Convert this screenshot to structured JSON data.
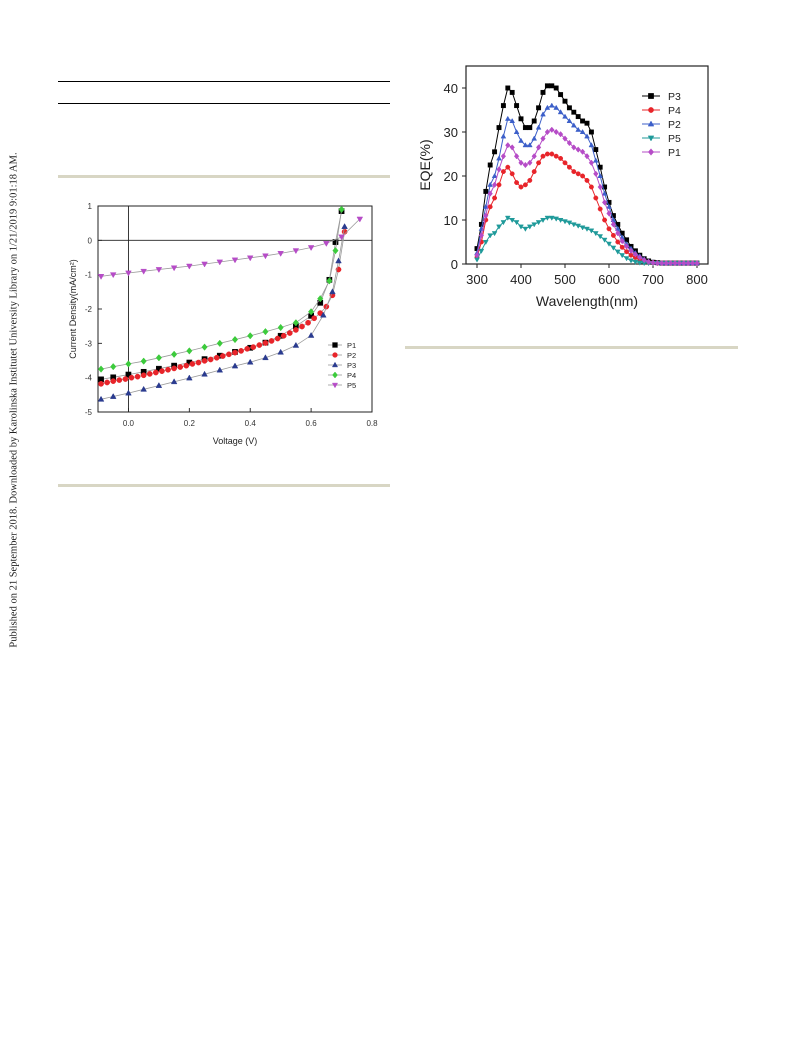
{
  "sidebar": {
    "published_note": "Published on 21 September 2018. Downloaded by Karolinska Institutet University Library on 1/21/2019 9:01:18 AM."
  },
  "chart_data": [
    {
      "type": "scatter",
      "xlabel": "Voltage (V)",
      "ylabel": "Current Density(mA/cm²)",
      "xlim": [
        -0.1,
        0.8
      ],
      "ylim": [
        -5,
        1
      ],
      "x_ticks": [
        "0.0",
        "0.2",
        "0.4",
        "0.6",
        "0.8"
      ],
      "y_ticks": [
        "1",
        "0",
        "-1",
        "-2",
        "-3",
        "-4",
        "-5"
      ],
      "legend_position": "bottom-right",
      "reference_lines": {
        "x": 0,
        "y": 0
      },
      "series": [
        {
          "name": "P1",
          "color": "#000000",
          "marker": "square",
          "Jsc": -3.95,
          "Voc": 0.68,
          "points": [
            [
              -0.09,
              -4.05
            ],
            [
              -0.05,
              -3.99
            ],
            [
              0.0,
              -3.91
            ],
            [
              0.05,
              -3.83
            ],
            [
              0.1,
              -3.74
            ],
            [
              0.15,
              -3.65
            ],
            [
              0.2,
              -3.56
            ],
            [
              0.25,
              -3.46
            ],
            [
              0.3,
              -3.36
            ],
            [
              0.35,
              -3.25
            ],
            [
              0.4,
              -3.13
            ],
            [
              0.45,
              -2.98
            ],
            [
              0.5,
              -2.78
            ],
            [
              0.55,
              -2.5
            ],
            [
              0.6,
              -2.2
            ],
            [
              0.63,
              -1.82
            ],
            [
              0.66,
              -1.15
            ],
            [
              0.68,
              -0.05
            ],
            [
              0.7,
              0.85
            ]
          ]
        },
        {
          "name": "P2",
          "color": "#e8242a",
          "marker": "circle",
          "Jsc": -4.05,
          "Voc": 0.7,
          "points": [
            [
              -0.09,
              -4.18
            ],
            [
              -0.07,
              -4.14
            ],
            [
              -0.05,
              -4.1
            ],
            [
              -0.03,
              -4.07
            ],
            [
              -0.01,
              -4.04
            ],
            [
              0.01,
              -4.0
            ],
            [
              0.03,
              -3.97
            ],
            [
              0.05,
              -3.93
            ],
            [
              0.07,
              -3.89
            ],
            [
              0.09,
              -3.85
            ],
            [
              0.11,
              -3.81
            ],
            [
              0.13,
              -3.77
            ],
            [
              0.15,
              -3.73
            ],
            [
              0.17,
              -3.69
            ],
            [
              0.19,
              -3.65
            ],
            [
              0.21,
              -3.6
            ],
            [
              0.23,
              -3.56
            ],
            [
              0.25,
              -3.51
            ],
            [
              0.27,
              -3.47
            ],
            [
              0.29,
              -3.42
            ],
            [
              0.31,
              -3.37
            ],
            [
              0.33,
              -3.32
            ],
            [
              0.35,
              -3.27
            ],
            [
              0.37,
              -3.22
            ],
            [
              0.39,
              -3.16
            ],
            [
              0.41,
              -3.11
            ],
            [
              0.43,
              -3.05
            ],
            [
              0.45,
              -2.99
            ],
            [
              0.47,
              -2.93
            ],
            [
              0.49,
              -2.86
            ],
            [
              0.51,
              -2.78
            ],
            [
              0.53,
              -2.7
            ],
            [
              0.55,
              -2.61
            ],
            [
              0.57,
              -2.51
            ],
            [
              0.59,
              -2.4
            ],
            [
              0.61,
              -2.27
            ],
            [
              0.63,
              -2.12
            ],
            [
              0.65,
              -1.93
            ],
            [
              0.67,
              -1.6
            ],
            [
              0.69,
              -0.85
            ],
            [
              0.71,
              0.25
            ]
          ]
        },
        {
          "name": "P3",
          "color": "#2a3b8f",
          "marker": "triangle-up",
          "Jsc": -4.45,
          "Voc": 0.7,
          "points": [
            [
              -0.09,
              -4.63
            ],
            [
              -0.05,
              -4.55
            ],
            [
              0.0,
              -4.45
            ],
            [
              0.05,
              -4.34
            ],
            [
              0.1,
              -4.23
            ],
            [
              0.15,
              -4.12
            ],
            [
              0.2,
              -4.01
            ],
            [
              0.25,
              -3.9
            ],
            [
              0.3,
              -3.78
            ],
            [
              0.35,
              -3.66
            ],
            [
              0.4,
              -3.55
            ],
            [
              0.45,
              -3.42
            ],
            [
              0.5,
              -3.26
            ],
            [
              0.55,
              -3.06
            ],
            [
              0.6,
              -2.77
            ],
            [
              0.64,
              -2.18
            ],
            [
              0.67,
              -1.5
            ],
            [
              0.69,
              -0.6
            ],
            [
              0.71,
              0.4
            ]
          ]
        },
        {
          "name": "P4",
          "color": "#3ccb3c",
          "marker": "diamond",
          "Jsc": -3.62,
          "Voc": 0.68,
          "points": [
            [
              -0.09,
              -3.75
            ],
            [
              -0.05,
              -3.68
            ],
            [
              0.0,
              -3.6
            ],
            [
              0.05,
              -3.52
            ],
            [
              0.1,
              -3.42
            ],
            [
              0.15,
              -3.32
            ],
            [
              0.2,
              -3.22
            ],
            [
              0.25,
              -3.11
            ],
            [
              0.3,
              -3.0
            ],
            [
              0.35,
              -2.89
            ],
            [
              0.4,
              -2.78
            ],
            [
              0.45,
              -2.66
            ],
            [
              0.5,
              -2.54
            ],
            [
              0.55,
              -2.4
            ],
            [
              0.6,
              -2.08
            ],
            [
              0.63,
              -1.7
            ],
            [
              0.66,
              -1.18
            ],
            [
              0.68,
              -0.3
            ],
            [
              0.7,
              0.9
            ]
          ]
        },
        {
          "name": "P5",
          "color": "#b64cc7",
          "marker": "triangle-down",
          "Jsc": -0.92,
          "Voc": 0.66,
          "points": [
            [
              -0.09,
              -1.05
            ],
            [
              -0.05,
              -1.0
            ],
            [
              0.0,
              -0.95
            ],
            [
              0.05,
              -0.9
            ],
            [
              0.1,
              -0.85
            ],
            [
              0.15,
              -0.8
            ],
            [
              0.2,
              -0.75
            ],
            [
              0.25,
              -0.69
            ],
            [
              0.3,
              -0.63
            ],
            [
              0.35,
              -0.57
            ],
            [
              0.4,
              -0.51
            ],
            [
              0.45,
              -0.45
            ],
            [
              0.5,
              -0.38
            ],
            [
              0.55,
              -0.3
            ],
            [
              0.6,
              -0.21
            ],
            [
              0.65,
              -0.09
            ],
            [
              0.7,
              0.1
            ],
            [
              0.76,
              0.62
            ]
          ]
        }
      ]
    },
    {
      "type": "line",
      "xlabel": "Wavelength(nm)",
      "ylabel": "EQE(%)",
      "xlim": [
        275,
        825
      ],
      "ylim": [
        0,
        45
      ],
      "x_ticks": [
        "300",
        "400",
        "500",
        "600",
        "700",
        "800"
      ],
      "y_ticks": [
        "0",
        "10",
        "20",
        "30",
        "40"
      ],
      "legend_position": "top-right",
      "x": [
        300,
        310,
        320,
        330,
        340,
        350,
        360,
        370,
        380,
        390,
        400,
        410,
        420,
        430,
        440,
        450,
        460,
        470,
        480,
        490,
        500,
        510,
        520,
        530,
        540,
        550,
        560,
        570,
        580,
        590,
        600,
        610,
        620,
        630,
        640,
        650,
        660,
        670,
        680,
        690,
        700,
        710,
        720,
        730,
        740,
        750,
        760,
        770,
        780,
        790,
        800
      ],
      "series": [
        {
          "name": "P3",
          "color": "#000000",
          "marker": "square",
          "values": [
            3.5,
            9,
            16.5,
            22.5,
            25.5,
            31,
            36,
            40,
            39,
            36,
            33,
            31,
            31,
            32.5,
            35.5,
            39,
            40.5,
            40.5,
            40,
            38.5,
            37,
            35.5,
            34.5,
            33.5,
            32.5,
            32,
            30,
            26,
            22,
            17.5,
            14,
            11,
            9,
            7,
            5.5,
            4,
            3,
            2,
            1.2,
            0.7,
            0.4,
            0.3,
            0.2,
            0.2,
            0.2,
            0.2,
            0.2,
            0.2,
            0.2,
            0.2,
            0.2
          ]
        },
        {
          "name": "P4",
          "color": "#e8242a",
          "marker": "circle",
          "values": [
            1.5,
            5,
            10,
            13,
            15,
            18,
            21,
            22,
            20.5,
            18.5,
            17.5,
            18,
            19,
            21,
            23,
            24.5,
            25,
            25,
            24.5,
            24,
            23,
            22,
            21,
            20.5,
            20,
            19,
            17.5,
            15,
            12.5,
            10,
            8,
            6.5,
            5,
            3.8,
            2.8,
            2,
            1.5,
            1,
            0.6,
            0.4,
            0.3,
            0.2,
            0.2,
            0.2,
            0.2,
            0.2,
            0.2,
            0.2,
            0.2,
            0.2,
            0.2
          ]
        },
        {
          "name": "P2",
          "color": "#3c5fc9",
          "marker": "triangle-up",
          "values": [
            2.5,
            8,
            13,
            18,
            20,
            24,
            29,
            33,
            32.5,
            30,
            28,
            27,
            27,
            28.5,
            31,
            34,
            35.5,
            36,
            35.5,
            34.5,
            33.5,
            32.5,
            31.5,
            30.5,
            30,
            29,
            27,
            23.5,
            20,
            16,
            13,
            10,
            8,
            6,
            4.5,
            3.5,
            2.5,
            1.8,
            1.1,
            0.6,
            0.4,
            0.3,
            0.2,
            0.2,
            0.2,
            0.2,
            0.2,
            0.2,
            0.2,
            0.2,
            0.2
          ]
        },
        {
          "name": "P5",
          "color": "#1f9a9a",
          "marker": "triangle-down",
          "values": [
            1,
            3,
            5,
            6.5,
            7,
            8.5,
            9.5,
            10.5,
            10,
            9.5,
            8.5,
            8,
            8.5,
            9,
            9.5,
            10,
            10.5,
            10.5,
            10.3,
            10,
            9.7,
            9.4,
            9,
            8.7,
            8.3,
            8,
            7.6,
            7,
            6.3,
            5.5,
            4.6,
            3.7,
            2.8,
            2,
            1.3,
            0.8,
            0.5,
            0.3,
            0.2,
            0.2,
            0.2,
            0.2,
            0.2,
            0.2,
            0.2,
            0.2,
            0.2,
            0.2,
            0.2,
            0.2,
            0.2
          ]
        },
        {
          "name": "P1",
          "color": "#b64cc7",
          "marker": "diamond",
          "values": [
            2,
            6.5,
            11,
            16,
            18,
            21.5,
            24.5,
            27,
            26.5,
            24.5,
            23,
            22.5,
            23,
            24.5,
            26.5,
            28.5,
            30,
            30.5,
            30,
            29.5,
            28.5,
            27.5,
            26.5,
            26,
            25.5,
            24.5,
            23,
            20.5,
            17.5,
            14,
            11.5,
            9,
            7,
            5.2,
            4,
            3,
            2.2,
            1.5,
            0.9,
            0.5,
            0.3,
            0.2,
            0.2,
            0.2,
            0.2,
            0.2,
            0.2,
            0.2,
            0.2,
            0.2,
            0.2
          ]
        }
      ]
    }
  ]
}
